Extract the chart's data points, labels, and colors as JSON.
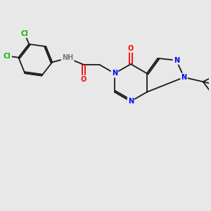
{
  "bg_color": "#e8e8e8",
  "bond_color": "#1a1a1a",
  "n_color": "#0000ff",
  "o_color": "#ff0000",
  "cl_color": "#00bb00",
  "h_color": "#7a7a7a",
  "font_size": 7.0,
  "bond_width": 1.3,
  "xlim": [
    0,
    10
  ],
  "ylim": [
    0,
    10
  ]
}
